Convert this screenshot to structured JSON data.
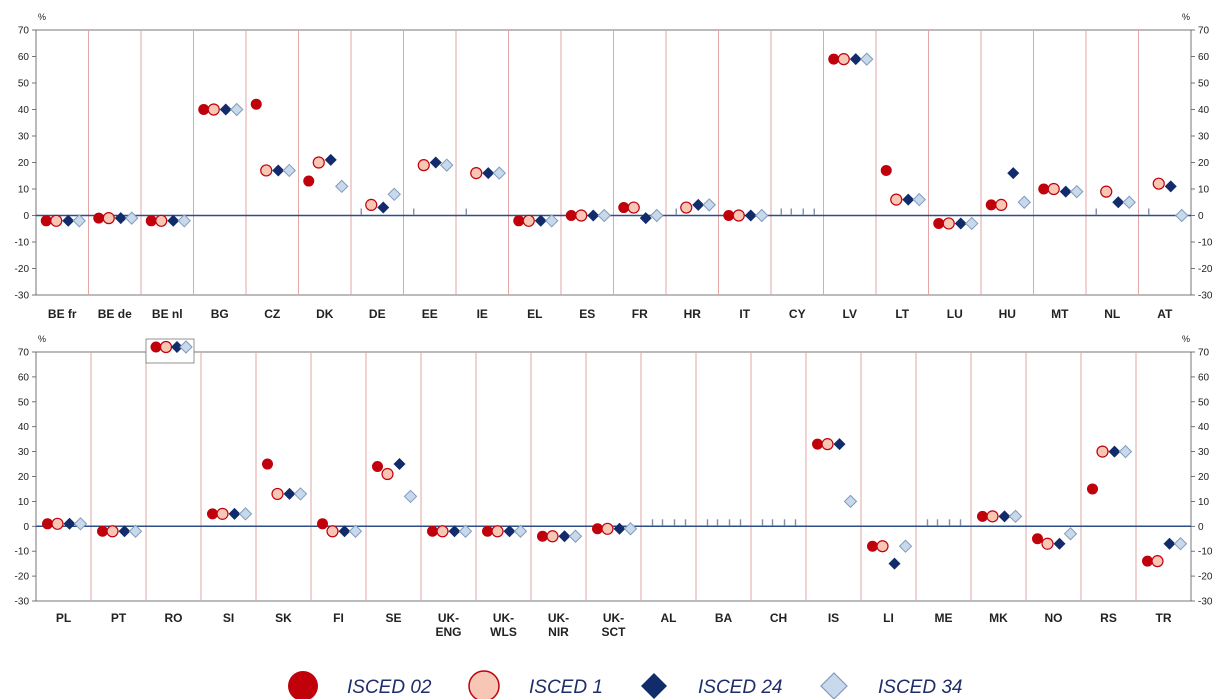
{
  "chart_data": [
    {
      "type": "scatter",
      "unit_label": "%",
      "ylim": [
        -30,
        70
      ],
      "yticks": [
        70,
        60,
        50,
        40,
        30,
        20,
        10,
        0,
        -10,
        -20,
        -30
      ],
      "grid": false,
      "categories": [
        "BE fr",
        "BE de",
        "BE nl",
        "BG",
        "CZ",
        "DK",
        "DE",
        "EE",
        "IE",
        "EL",
        "ES",
        "FR",
        "HR",
        "IT",
        "CY",
        "LV",
        "LT",
        "LU",
        "HU",
        "MT",
        "NL",
        "AT"
      ],
      "categories_display": [
        [
          "BE fr"
        ],
        [
          "BE de"
        ],
        [
          "BE nl"
        ],
        [
          "BG"
        ],
        [
          "CZ"
        ],
        [
          "DK"
        ],
        [
          "DE"
        ],
        [
          "EE"
        ],
        [
          "IE"
        ],
        [
          "EL"
        ],
        [
          "ES"
        ],
        [
          "FR"
        ],
        [
          "HR"
        ],
        [
          "IT"
        ],
        [
          "CY"
        ],
        [
          "LV"
        ],
        [
          "LT"
        ],
        [
          "LU"
        ],
        [
          "HU"
        ],
        [
          "MT"
        ],
        [
          "NL"
        ],
        [
          "AT"
        ]
      ],
      "series": [
        {
          "name": "ISCED 02",
          "values": [
            -2,
            -1,
            -2,
            40,
            42,
            13,
            null,
            null,
            null,
            -2,
            0,
            3,
            null,
            0,
            null,
            59,
            17,
            -3,
            4,
            10,
            null,
            null
          ]
        },
        {
          "name": "ISCED 1",
          "values": [
            -2,
            -1,
            -2,
            40,
            17,
            20,
            4,
            19,
            16,
            -2,
            0,
            3,
            3,
            0,
            null,
            59,
            6,
            -3,
            4,
            10,
            9,
            12
          ]
        },
        {
          "name": "ISCED 24",
          "values": [
            -2,
            -1,
            -2,
            40,
            17,
            21,
            3,
            20,
            16,
            -2,
            0,
            -1,
            4,
            0,
            null,
            59,
            6,
            -3,
            16,
            9,
            5,
            11
          ]
        },
        {
          "name": "ISCED 34",
          "values": [
            -2,
            -1,
            -2,
            40,
            17,
            11,
            8,
            19,
            16,
            -2,
            0,
            0,
            4,
            0,
            null,
            59,
            6,
            -3,
            5,
            9,
            5,
            0
          ]
        }
      ],
      "not_applicable_markers": {
        "DE": [
          "ISCED 02"
        ],
        "EE": [
          "ISCED 02"
        ],
        "IE": [
          "ISCED 02"
        ],
        "HR": [
          "ISCED 02"
        ],
        "CY": [
          "ISCED 02",
          "ISCED 1",
          "ISCED 24",
          "ISCED 34"
        ],
        "NL": [
          "ISCED 02"
        ],
        "AT": [
          "ISCED 02"
        ]
      }
    },
    {
      "type": "scatter",
      "unit_label": "%",
      "ylim": [
        -30,
        70
      ],
      "yticks": [
        70,
        60,
        50,
        40,
        30,
        20,
        10,
        0,
        -10,
        -20,
        -30
      ],
      "grid": false,
      "categories": [
        "PL",
        "PT",
        "RO",
        "SI",
        "SK",
        "FI",
        "SE",
        "UK-ENG",
        "UK-WLS",
        "UK-NIR",
        "UK-SCT",
        "AL",
        "BA",
        "CH",
        "IS",
        "LI",
        "ME",
        "MK",
        "NO",
        "RS",
        "TR"
      ],
      "categories_display": [
        [
          "PL"
        ],
        [
          "PT"
        ],
        [
          "RO"
        ],
        [
          "SI"
        ],
        [
          "SK"
        ],
        [
          "FI"
        ],
        [
          "SE"
        ],
        [
          "UK-",
          "ENG"
        ],
        [
          "UK-",
          "WLS"
        ],
        [
          "UK-",
          "NIR"
        ],
        [
          "UK-",
          "SCT"
        ],
        [
          "AL"
        ],
        [
          "BA"
        ],
        [
          "CH"
        ],
        [
          "IS"
        ],
        [
          "LI"
        ],
        [
          "ME"
        ],
        [
          "MK"
        ],
        [
          "NO"
        ],
        [
          "RS"
        ],
        [
          "TR"
        ]
      ],
      "series": [
        {
          "name": "ISCED 02",
          "values": [
            1,
            -2,
            null,
            5,
            25,
            1,
            24,
            -2,
            -2,
            -4,
            -1,
            null,
            null,
            null,
            33,
            -8,
            null,
            4,
            -5,
            15,
            -14
          ]
        },
        {
          "name": "ISCED 1",
          "values": [
            1,
            -2,
            null,
            5,
            13,
            -2,
            21,
            -2,
            -2,
            -4,
            -1,
            null,
            null,
            null,
            33,
            -8,
            null,
            4,
            -7,
            30,
            -14
          ]
        },
        {
          "name": "ISCED 24",
          "values": [
            1,
            -2,
            null,
            5,
            13,
            -2,
            25,
            -2,
            -2,
            -4,
            -1,
            null,
            null,
            null,
            33,
            -15,
            null,
            4,
            -7,
            30,
            -7
          ]
        },
        {
          "name": "ISCED 34",
          "values": [
            1,
            -2,
            null,
            5,
            13,
            -2,
            12,
            -2,
            -2,
            -4,
            -1,
            null,
            null,
            null,
            10,
            -8,
            null,
            4,
            -3,
            30,
            -7
          ]
        }
      ],
      "not_applicable_markers": {
        "AL": [
          "ISCED 02",
          "ISCED 1",
          "ISCED 24",
          "ISCED 34"
        ],
        "BA": [
          "ISCED 02",
          "ISCED 1",
          "ISCED 24",
          "ISCED 34"
        ],
        "CH": [
          "ISCED 02",
          "ISCED 1",
          "ISCED 24",
          "ISCED 34"
        ],
        "ME": [
          "ISCED 02",
          "ISCED 1",
          "ISCED 24",
          "ISCED 34"
        ]
      }
    }
  ],
  "legend": [
    {
      "label": "ISCED 02",
      "marker": "filled-circle"
    },
    {
      "label": "ISCED 1",
      "marker": "open-circle"
    },
    {
      "label": "ISCED 24",
      "marker": "filled-diamond"
    },
    {
      "label": "ISCED 34",
      "marker": "open-diamond"
    }
  ],
  "colors": {
    "isced02": "#c0000b",
    "isced1_fill": "#f7c6b4",
    "isced1_stroke": "#c0000b",
    "isced24": "#112b6b",
    "isced34_fill": "#c7d9ea",
    "isced34_stroke": "#7f9bbd",
    "separator": "#e3a6a6",
    "zero_line": "#2c4f8a"
  }
}
